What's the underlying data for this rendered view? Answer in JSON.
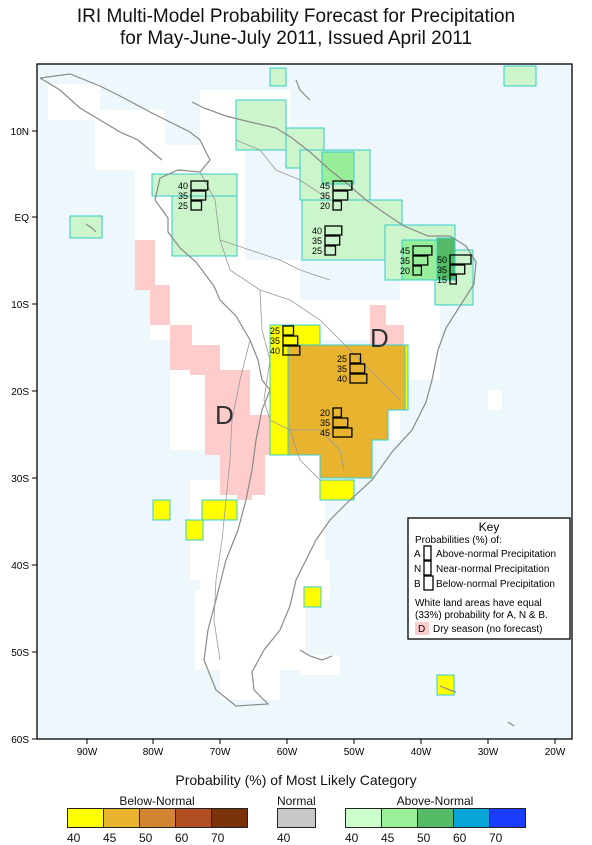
{
  "title": {
    "line1": "IRI Multi-Model Probability Forecast for Precipitation",
    "line2": "for May-June-July 2011, Issued April 2011"
  },
  "axes": {
    "lat_labels": [
      "10N",
      "EQ",
      "10S",
      "20S",
      "30S",
      "40S",
      "50S",
      "60S"
    ],
    "lon_labels": [
      "90W",
      "80W",
      "70W",
      "60W",
      "50W",
      "40W",
      "30W",
      "20W"
    ]
  },
  "dry_markers": [
    "D",
    "D"
  ],
  "boxes": [
    {
      "a": "40",
      "n": "35",
      "b": "25"
    },
    {
      "a": "45",
      "n": "35",
      "b": "20"
    },
    {
      "a": "40",
      "n": "35",
      "b": "25"
    },
    {
      "a": "45",
      "n": "35",
      "b": "20"
    },
    {
      "a": "50",
      "n": "35",
      "b": "15"
    },
    {
      "a": "25",
      "n": "35",
      "b": "40"
    },
    {
      "a": "25",
      "n": "35",
      "b": "40"
    },
    {
      "a": "20",
      "n": "35",
      "b": "45"
    }
  ],
  "key": {
    "title": "Key",
    "subtitle": "Probabilities (%) of:",
    "rows": [
      {
        "letter": "A",
        "text": "Above-normal Precipitation"
      },
      {
        "letter": "N",
        "text": "Near-normal Precipitation"
      },
      {
        "letter": "B",
        "text": "Below-normal Precipitation"
      }
    ],
    "note1": "White land areas have equal",
    "note2": "(33%) probability for A, N & B.",
    "dry_letter": "D",
    "dry_text": "Dry season (no forecast)"
  },
  "legend": {
    "title": "Probability (%) of Most Likely Category",
    "below_label": "Below-Normal",
    "normal_label": "Normal",
    "above_label": "Above-Normal",
    "below_values": [
      "40",
      "45",
      "50",
      "60",
      "70"
    ],
    "normal_values": [
      "40"
    ],
    "above_values": [
      "40",
      "45",
      "50",
      "60",
      "70"
    ],
    "below_colors": [
      "#ffff00",
      "#e8b430",
      "#d38432",
      "#b14e22",
      "#7a3208"
    ],
    "normal_colors": [
      "#c8c8c8"
    ],
    "above_colors": [
      "#ccffcc",
      "#99f099",
      "#55bb66",
      "#0aa5d8",
      "#1a3cff"
    ]
  }
}
